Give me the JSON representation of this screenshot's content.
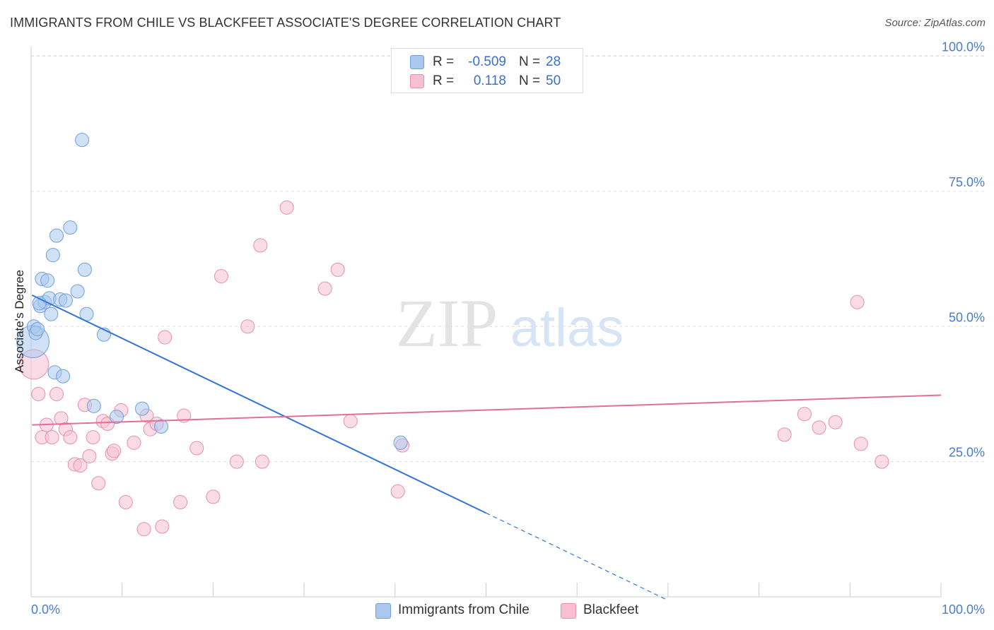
{
  "header": {
    "title": "IMMIGRANTS FROM CHILE VS BLACKFEET ASSOCIATE'S DEGREE CORRELATION CHART",
    "source": "Source: ZipAtlas.com"
  },
  "watermark": {
    "zip": "ZIP",
    "atlas": "atlas"
  },
  "legend": {
    "rows": [
      {
        "r_label": "R =",
        "r_value": "-0.509",
        "n_label": "N =",
        "n_value": "28"
      },
      {
        "r_label": "R =",
        "r_value": "0.118",
        "n_label": "N =",
        "n_value": "50"
      }
    ]
  },
  "bottom_legend": [
    "Immigrants from Chile",
    "Blackfeet"
  ],
  "colors": {
    "blue_fill": "#aac8ee",
    "blue_stroke": "#6fa0dd",
    "blue_line": "#3374d4",
    "pink_fill": "#f6bfd2",
    "pink_stroke": "#e68fae",
    "pink_line": "#e06f9a",
    "axis_text": "#4a7cc9",
    "grid": "#dddddd"
  },
  "chart_data": {
    "type": "scatter",
    "title": "IMMIGRANTS FROM CHILE VS BLACKFEET ASSOCIATE'S DEGREE CORRELATION CHART",
    "xlabel": "",
    "ylabel": "Associate's Degree",
    "xlim": [
      0,
      100
    ],
    "ylim": [
      0,
      100
    ],
    "x_tick_labels": [
      "0.0%",
      "100.0%"
    ],
    "y_tick_labels": [
      "100.0%",
      "75.0%",
      "50.0%",
      "25.0%"
    ],
    "y_ticks": [
      100,
      75,
      50,
      25
    ],
    "grid": true,
    "series": [
      {
        "name": "Immigrants from Chile",
        "color": "#aac8ee",
        "r": -0.509,
        "n": 28,
        "points": [
          [
            0.2,
            47.2,
            24
          ],
          [
            0.3,
            50.0,
            10
          ],
          [
            0.5,
            48.8,
            10
          ],
          [
            0.7,
            49.5,
            10
          ],
          [
            1.0,
            53.8,
            10
          ],
          [
            1.2,
            58.8,
            10
          ],
          [
            1.5,
            54.5,
            10
          ],
          [
            1.8,
            58.5,
            10
          ],
          [
            2.0,
            55.2,
            10
          ],
          [
            2.2,
            52.3,
            10
          ],
          [
            2.4,
            63.2,
            10
          ],
          [
            2.6,
            41.5,
            10
          ],
          [
            2.8,
            66.8,
            10
          ],
          [
            3.2,
            55.0,
            10
          ],
          [
            3.5,
            40.8,
            10
          ],
          [
            3.8,
            54.8,
            10
          ],
          [
            4.3,
            68.3,
            10
          ],
          [
            5.1,
            56.5,
            10
          ],
          [
            5.6,
            84.5,
            10
          ],
          [
            5.9,
            60.5,
            10
          ],
          [
            6.1,
            52.3,
            10
          ],
          [
            6.9,
            35.3,
            10
          ],
          [
            8.0,
            48.5,
            10
          ],
          [
            9.4,
            33.3,
            10
          ],
          [
            12.2,
            34.8,
            10
          ],
          [
            14.3,
            31.5,
            10
          ],
          [
            40.6,
            28.5,
            10
          ],
          [
            0.9,
            54.3,
            10
          ]
        ],
        "trend": {
          "x_start": 0.1,
          "y_start": 55.8,
          "x_solid_end": 50.0,
          "x_dash_end": 70.0
        }
      },
      {
        "name": "Blackfeet",
        "color": "#f6bfd2",
        "r": 0.118,
        "n": 50,
        "points": [
          [
            0.3,
            43.0,
            22
          ],
          [
            0.8,
            37.5,
            10
          ],
          [
            1.2,
            29.5,
            10
          ],
          [
            1.7,
            31.8,
            10
          ],
          [
            2.3,
            29.5,
            10
          ],
          [
            2.8,
            37.5,
            10
          ],
          [
            3.3,
            33.0,
            10
          ],
          [
            3.8,
            31.0,
            10
          ],
          [
            4.3,
            29.5,
            10
          ],
          [
            4.8,
            24.5,
            10
          ],
          [
            5.4,
            24.3,
            10
          ],
          [
            5.9,
            35.5,
            10
          ],
          [
            6.4,
            26.0,
            10
          ],
          [
            6.8,
            29.5,
            10
          ],
          [
            7.4,
            21.0,
            10
          ],
          [
            7.9,
            32.5,
            10
          ],
          [
            8.4,
            32.0,
            10
          ],
          [
            8.9,
            26.5,
            10
          ],
          [
            9.1,
            27.0,
            10
          ],
          [
            9.9,
            34.5,
            10
          ],
          [
            10.4,
            17.5,
            10
          ],
          [
            11.3,
            28.5,
            10
          ],
          [
            12.4,
            12.5,
            10
          ],
          [
            12.7,
            33.5,
            10
          ],
          [
            13.1,
            31.0,
            10
          ],
          [
            13.8,
            32.0,
            10
          ],
          [
            14.4,
            13.0,
            10
          ],
          [
            14.7,
            48.0,
            10
          ],
          [
            16.4,
            17.5,
            10
          ],
          [
            16.8,
            33.5,
            10
          ],
          [
            18.2,
            27.5,
            10
          ],
          [
            20.0,
            18.5,
            10
          ],
          [
            20.9,
            59.3,
            10
          ],
          [
            22.6,
            25.0,
            10
          ],
          [
            23.8,
            50.0,
            10
          ],
          [
            25.2,
            65.0,
            10
          ],
          [
            25.4,
            25.0,
            10
          ],
          [
            28.1,
            72.0,
            10
          ],
          [
            32.3,
            57.0,
            10
          ],
          [
            33.7,
            60.5,
            10
          ],
          [
            35.1,
            32.5,
            10
          ],
          [
            40.3,
            19.5,
            10
          ],
          [
            40.8,
            28.0,
            10
          ],
          [
            82.8,
            30.0,
            10
          ],
          [
            85.0,
            33.8,
            10
          ],
          [
            86.6,
            31.3,
            10
          ],
          [
            88.4,
            32.3,
            10
          ],
          [
            90.8,
            54.5,
            10
          ],
          [
            91.2,
            28.3,
            10
          ],
          [
            93.5,
            25.0,
            10
          ]
        ],
        "trend": {
          "x_start": 0.1,
          "y_start": 31.8,
          "x_solid_end": 100.0,
          "y_end": 37.3
        }
      }
    ]
  }
}
